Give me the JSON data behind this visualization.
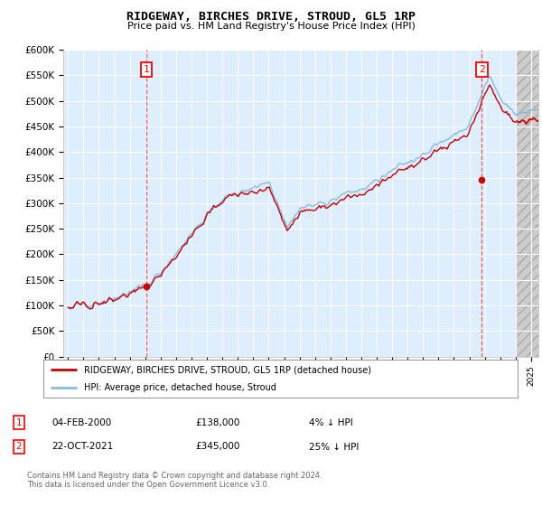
{
  "title": "RIDGEWAY, BIRCHES DRIVE, STROUD, GL5 1RP",
  "subtitle": "Price paid vs. HM Land Registry's House Price Index (HPI)",
  "ylabel_ticks": [
    "£0",
    "£50K",
    "£100K",
    "£150K",
    "£200K",
    "£250K",
    "£300K",
    "£350K",
    "£400K",
    "£450K",
    "£500K",
    "£550K",
    "£600K"
  ],
  "ytick_values": [
    0,
    50000,
    100000,
    150000,
    200000,
    250000,
    300000,
    350000,
    400000,
    450000,
    500000,
    550000,
    600000
  ],
  "ylim": [
    0,
    600000
  ],
  "background_color": "#ffffff",
  "plot_bg_color": "#ddeeff",
  "grid_color": "#ffffff",
  "hpi_color": "#88bbdd",
  "property_color": "#cc0000",
  "t1_year": 2000.09,
  "t1_price": 138000,
  "t2_year": 2021.81,
  "t2_price": 345000,
  "legend_property": "RIDGEWAY, BIRCHES DRIVE, STROUD, GL5 1RP (detached house)",
  "legend_hpi": "HPI: Average price, detached house, Stroud",
  "footnote": "Contains HM Land Registry data © Crown copyright and database right 2024.\nThis data is licensed under the Open Government Licence v3.0.",
  "table_rows": [
    {
      "num": "1",
      "date": "04-FEB-2000",
      "price": "£138,000",
      "hpi": "4% ↓ HPI"
    },
    {
      "num": "2",
      "date": "22-OCT-2021",
      "price": "£345,000",
      "hpi": "25% ↓ HPI"
    }
  ],
  "xmin": 1994.7,
  "xmax": 2025.5,
  "hatch_start": 2024.0
}
